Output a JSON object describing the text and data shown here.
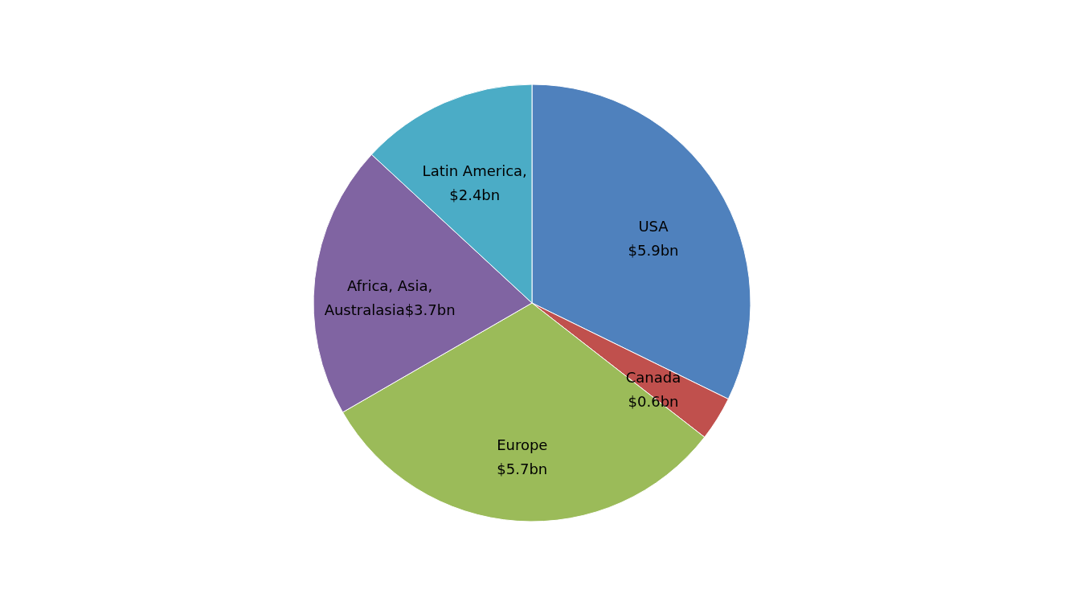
{
  "chart_data": {
    "type": "pie",
    "categories": [
      "USA",
      "Canada",
      "Europe",
      "Africa, Asia, Australasia",
      "Latin America"
    ],
    "values": [
      5.9,
      0.6,
      5.7,
      3.7,
      2.4
    ],
    "value_labels": [
      "$5.9bn",
      "$0.6bn",
      "$5.7bn",
      "$3.7bn",
      ",$2.4bn"
    ],
    "colors": [
      "#4f81bd",
      "#c0504d",
      "#9bbb59",
      "#8064a2",
      "#4bacc6"
    ],
    "legend": false
  }
}
